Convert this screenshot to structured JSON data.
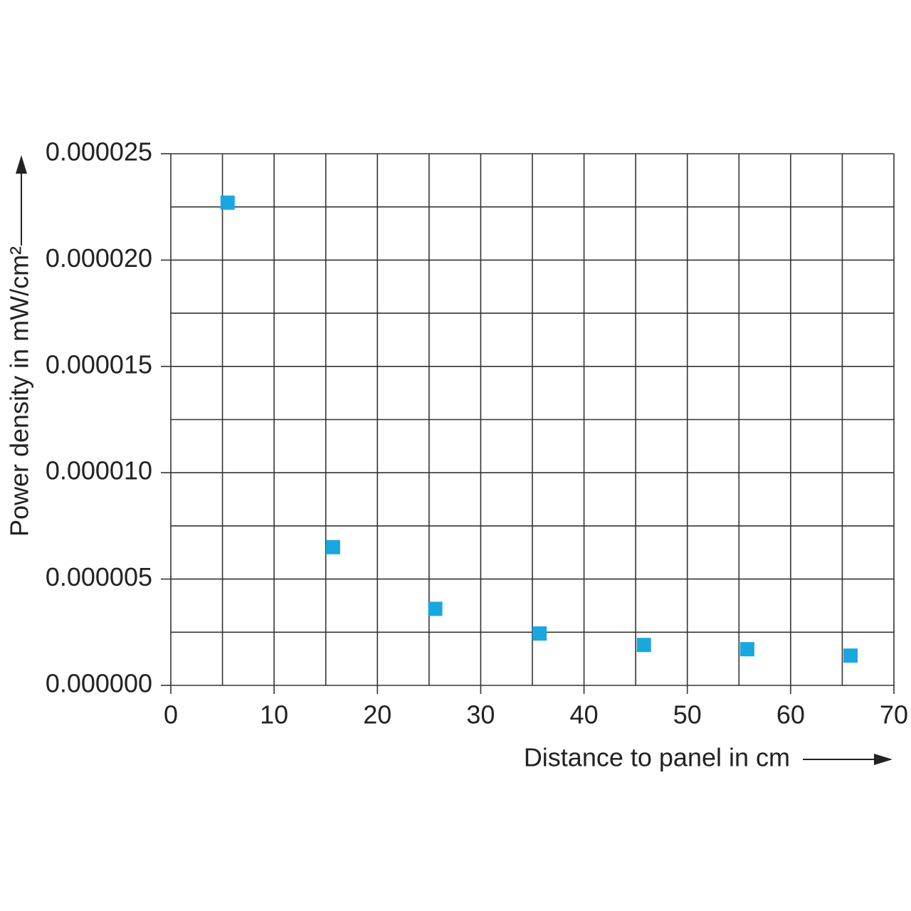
{
  "chart_data": {
    "type": "scatter",
    "x_label": "Distance to panel in cm",
    "y_label": "Power density in mW/cm²",
    "x": [
      5.5,
      15.7,
      25.6,
      35.7,
      45.8,
      55.8,
      65.8
    ],
    "values": [
      2.27e-05,
      6.5e-06,
      3.6e-06,
      2.44e-06,
      1.9e-06,
      1.7e-06,
      1.4e-06
    ],
    "color": "#1aa7e0",
    "xlim": [
      0,
      70
    ],
    "xticks": [
      0,
      10,
      20,
      30,
      40,
      50,
      60,
      70
    ],
    "ylim": [
      0,
      2.5e-05
    ],
    "yticks": [
      {
        "value": 0,
        "label": "0.000000"
      },
      {
        "value": 5e-06,
        "label": "0.000005"
      },
      {
        "value": 1e-05,
        "label": "0.000010"
      },
      {
        "value": 1.5e-05,
        "label": "0.000015"
      },
      {
        "value": 2e-05,
        "label": "0.000020"
      },
      {
        "value": 2.5e-05,
        "label": "0.000025"
      }
    ],
    "x_grid": [
      0,
      5,
      10,
      15,
      20,
      25,
      30,
      35,
      40,
      45,
      50,
      55,
      60,
      65,
      70
    ],
    "y_grid": [
      0,
      2.5e-06,
      5e-06,
      7.5e-06,
      1e-05,
      1.25e-05,
      1.5e-05,
      1.75e-05,
      2e-05,
      2.25e-05,
      2.5e-05
    ],
    "grid": true
  }
}
